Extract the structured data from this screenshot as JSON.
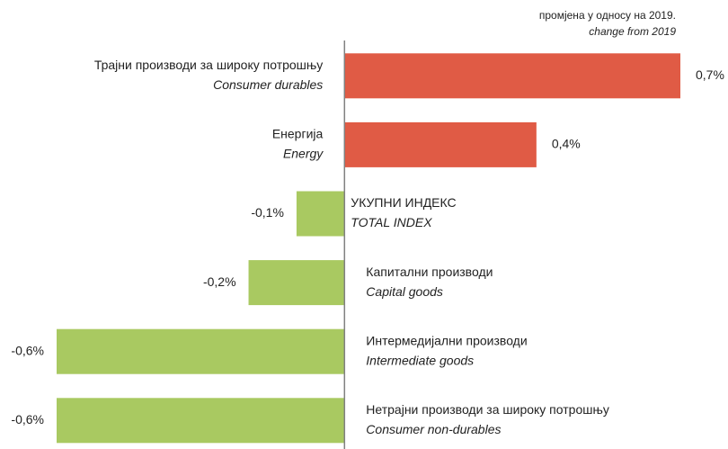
{
  "chart_data": {
    "type": "barh",
    "annotation": [
      "промјена у односу на 2019.",
      "change from 2019"
    ],
    "categories": [
      "Трајни производи за широку потрошњу",
      "Енергија",
      "УКУПНИ ИНДЕКС",
      "Капитални производи",
      "Интермедијални производи",
      "Нетрајни производи за широку потрошњу"
    ],
    "categories_en": [
      "Consumer durables",
      "Energy",
      "TOTAL INDEX",
      "Capital goods",
      "Intermediate goods",
      "Consumer non-durables"
    ],
    "values": [
      0.7,
      0.4,
      -0.1,
      -0.2,
      -0.6,
      -0.6
    ],
    "value_labels": [
      "0,7%",
      "0,4%",
      "-0,1%",
      "-0,2%",
      "-0,6%",
      "-0,6%"
    ],
    "colors": [
      "#e05b45",
      "#e05b45",
      "#a9c961",
      "#a9c961",
      "#a9c961",
      "#a9c961"
    ],
    "xlim": [
      -0.6,
      0.7
    ]
  }
}
